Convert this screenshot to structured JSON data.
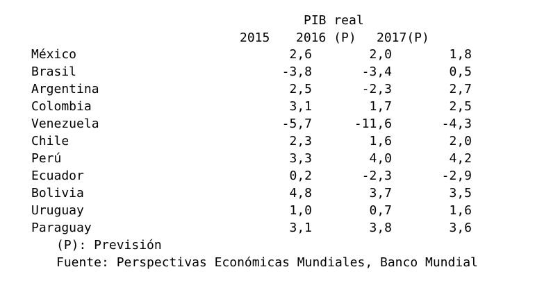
{
  "table": {
    "title": "PIB real",
    "columns": [
      "2015",
      "2016 (P)",
      "2017(P)"
    ],
    "rows": [
      {
        "country": "México",
        "values": [
          "2,6",
          "2,0",
          "1,8"
        ]
      },
      {
        "country": "Brasil",
        "values": [
          "-3,8",
          "-3,4",
          "0,5"
        ]
      },
      {
        "country": "Argentina",
        "values": [
          "2,5",
          "-2,3",
          "2,7"
        ]
      },
      {
        "country": "Colombia",
        "values": [
          "3,1",
          "1,7",
          "2,5"
        ]
      },
      {
        "country": "Venezuela",
        "values": [
          "-5,7",
          "-11,6",
          "-4,3"
        ]
      },
      {
        "country": "Chile",
        "values": [
          "2,3",
          "1,6",
          "2,0"
        ]
      },
      {
        "country": "Perú",
        "values": [
          "3,3",
          "4,0",
          "4,2"
        ]
      },
      {
        "country": "Ecuador",
        "values": [
          "0,2",
          "-2,3",
          "-2,9"
        ]
      },
      {
        "country": "Bolivia",
        "values": [
          "4,8",
          "3,7",
          "3,5"
        ]
      },
      {
        "country": "Uruguay",
        "values": [
          "1,0",
          "0,7",
          "1,6"
        ]
      },
      {
        "country": "Paraguay",
        "values": [
          "3,1",
          "3,8",
          "3,6"
        ]
      }
    ]
  },
  "notes": {
    "legend": "(P): Previsión",
    "source": "Fuente: Perspectivas Económicas Mundiales, Banco Mundial"
  }
}
